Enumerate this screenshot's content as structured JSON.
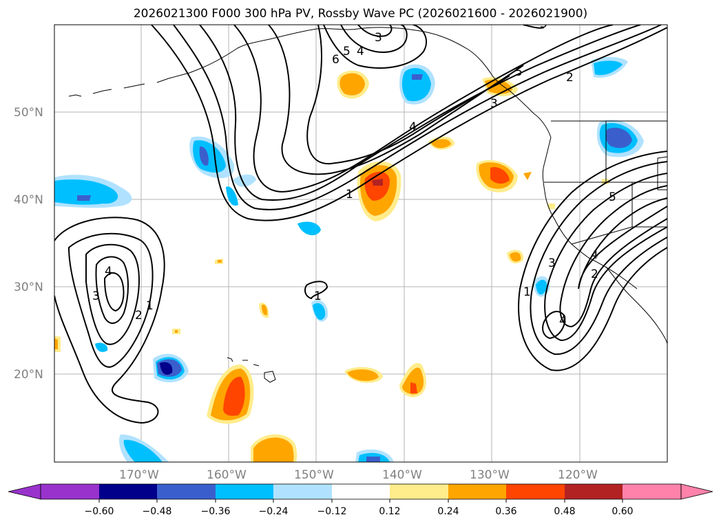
{
  "title": "2026021300 F000 300 hPa PV, Rossby Wave PC (2026021600 - 2026021900)",
  "latitude_labels": [
    "50°N",
    "40°N",
    "30°N",
    "20°N"
  ],
  "longitude_labels": [
    "170°W",
    "160°W",
    "150°W",
    "140°W",
    "130°W",
    "120°W"
  ],
  "colorbar": {
    "tick_labels": [
      "−0.60",
      "−0.48",
      "−0.36",
      "−0.24",
      "−0.12",
      "0.12",
      "0.24",
      "0.36",
      "0.48",
      "0.60"
    ],
    "colors": [
      "#9932cc",
      "#00008b",
      "#3a5fcd",
      "#00bfff",
      "#b0e2ff",
      "#ffffff",
      "#ffec8b",
      "#ffa500",
      "#ff4500",
      "#b22222",
      "#ff82ab"
    ]
  },
  "contour_labels": [
    "3",
    "4",
    "5",
    "6",
    "5",
    "4",
    "3",
    "2",
    "1",
    "4",
    "3",
    "2",
    "1",
    "1",
    "4",
    "3",
    "2",
    "1",
    "5",
    "4",
    "3"
  ],
  "anomaly_colors": {
    "neg_light": "#b0e2ff",
    "neg_mid": "#00bfff",
    "neg_strong": "#3a5fcd",
    "neg_max": "#00008b",
    "pos_light": "#ffec8b",
    "pos_mid": "#ffa500",
    "pos_strong": "#ff4500",
    "pos_max": "#b22222"
  }
}
